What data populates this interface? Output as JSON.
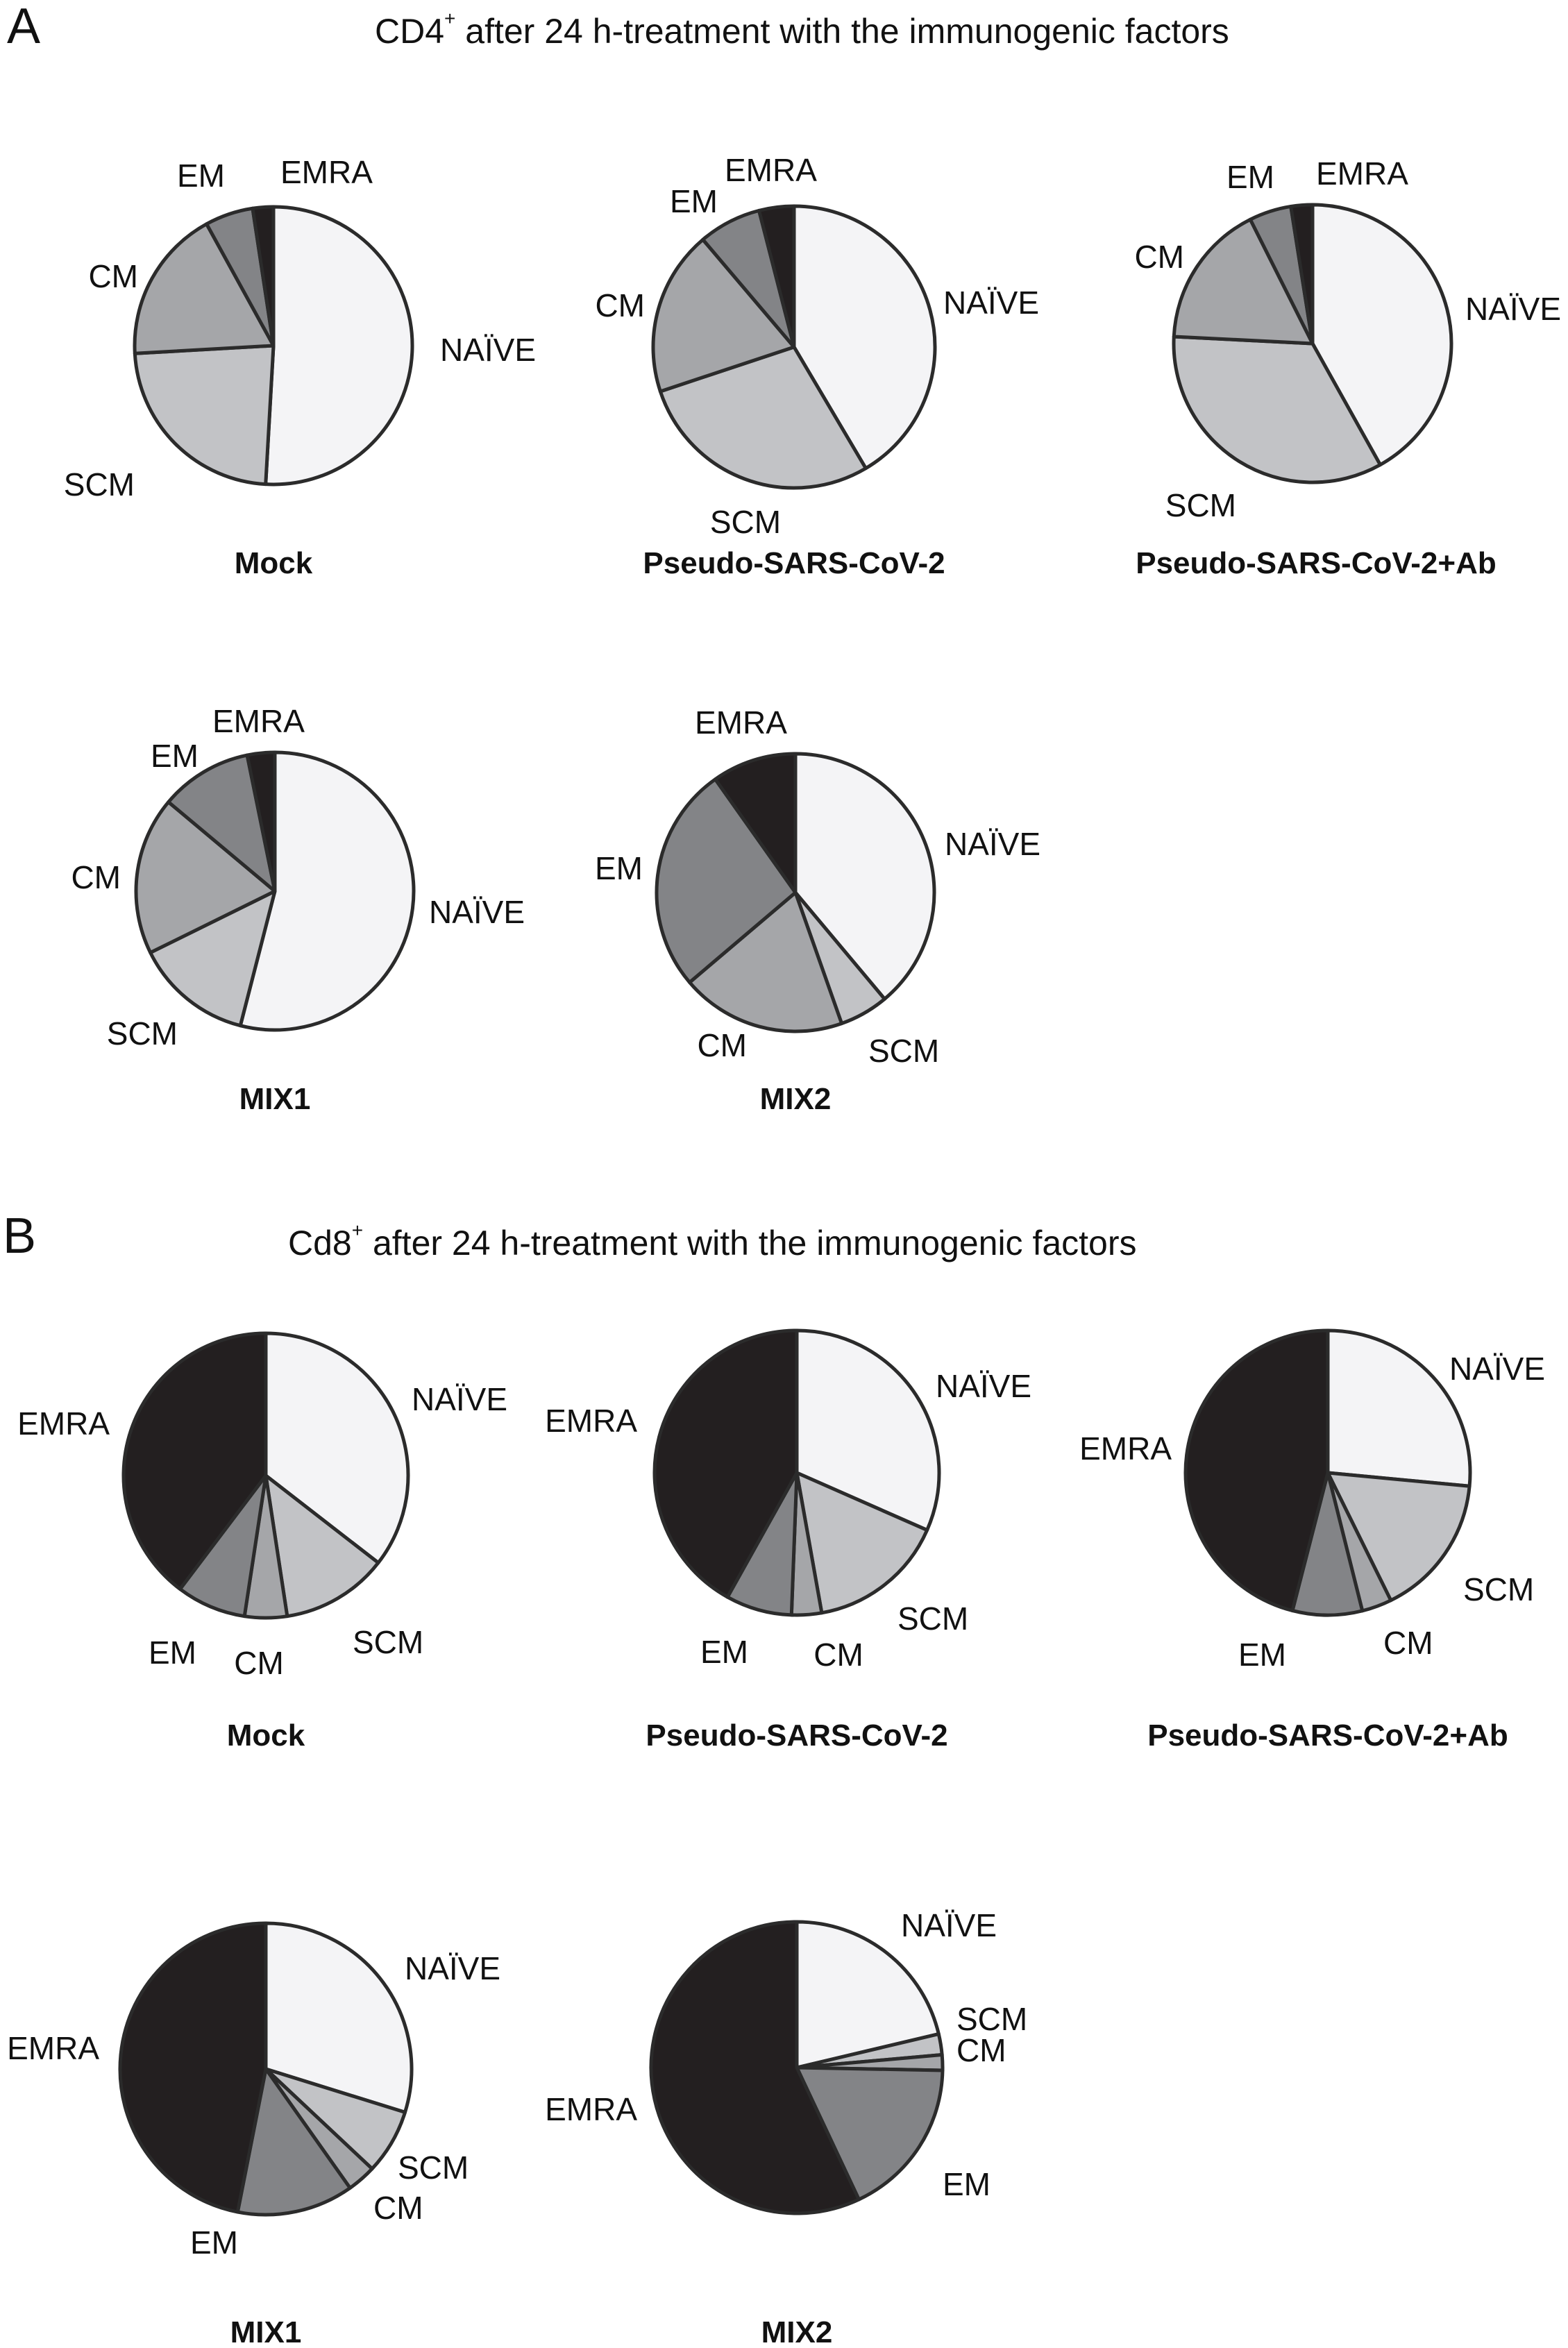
{
  "chart_data": [
    {
      "type": "pie",
      "panel": "A",
      "title": "CD4+ after 24 h-treatment with the immunogenic factors",
      "title_main": "CD4",
      "title_sup": "+",
      "title_rest": " after 24 h-treatment with the immunogenic factors",
      "categories": [
        "NAÏVE",
        "SCM",
        "CM",
        "EM",
        "EMRA"
      ],
      "colors": {
        "NAÏVE": "#f4f4f6",
        "SCM": "#c2c3c6",
        "CM": "#a5a6a9",
        "EM": "#838487",
        "EMRA": "#231f20"
      },
      "unit": "percent",
      "pies": [
        {
          "name": "Mock",
          "values": {
            "NAÏVE": 50.9,
            "SCM": 23.2,
            "CM": 17.9,
            "EM": 5.6,
            "EMRA": 2.4
          }
        },
        {
          "name": "Pseudo-SARS-CoV-2",
          "values": {
            "NAÏVE": 41.5,
            "SCM": 28.4,
            "CM": 18.9,
            "EM": 7.2,
            "EMRA": 4.0
          }
        },
        {
          "name": "Pseudo-SARS-CoV-2+Ab",
          "values": {
            "NAÏVE": 41.9,
            "SCM": 33.9,
            "CM": 16.8,
            "EM": 4.9,
            "EMRA": 2.5
          }
        },
        {
          "name": "MIX1",
          "values": {
            "NAÏVE": 54.0,
            "SCM": 13.7,
            "CM": 18.4,
            "EM": 10.7,
            "EMRA": 3.2
          }
        },
        {
          "name": "MIX2",
          "values": {
            "NAÏVE": 38.9,
            "SCM": 5.7,
            "CM": 19.2,
            "EM": 26.4,
            "EMRA": 9.8
          }
        }
      ]
    },
    {
      "type": "pie",
      "panel": "B",
      "title": "Cd8+ after 24 h-treatment with the immunogenic factors",
      "title_main": "Cd8",
      "title_sup": "+",
      "title_rest": " after 24 h-treatment with the immunogenic factors",
      "categories": [
        "NAÏVE",
        "SCM",
        "CM",
        "EM",
        "EMRA"
      ],
      "colors": {
        "NAÏVE": "#f4f4f6",
        "SCM": "#c2c3c6",
        "CM": "#a5a6a9",
        "EM": "#838487",
        "EMRA": "#231f20"
      },
      "unit": "percent",
      "pies": [
        {
          "name": "Mock",
          "values": {
            "NAÏVE": 35.5,
            "SCM": 12.1,
            "CM": 4.8,
            "EM": 7.9,
            "EMRA": 39.7
          }
        },
        {
          "name": "Pseudo-SARS-CoV-2",
          "values": {
            "NAÏVE": 31.6,
            "SCM": 15.6,
            "CM": 3.4,
            "EM": 7.5,
            "EMRA": 41.9
          }
        },
        {
          "name": "Pseudo-SARS-CoV-2+Ab",
          "values": {
            "NAÏVE": 26.5,
            "SCM": 16.2,
            "CM": 3.4,
            "EM": 7.9,
            "EMRA": 46.0
          }
        },
        {
          "name": "MIX1",
          "values": {
            "NAÏVE": 29.8,
            "SCM": 7.2,
            "CM": 3.2,
            "EM": 12.9,
            "EMRA": 46.9
          }
        },
        {
          "name": "MIX2",
          "values": {
            "NAÏVE": 21.3,
            "SCM": 2.3,
            "CM": 1.7,
            "EM": 17.7,
            "EMRA": 57.0
          }
        }
      ]
    }
  ]
}
